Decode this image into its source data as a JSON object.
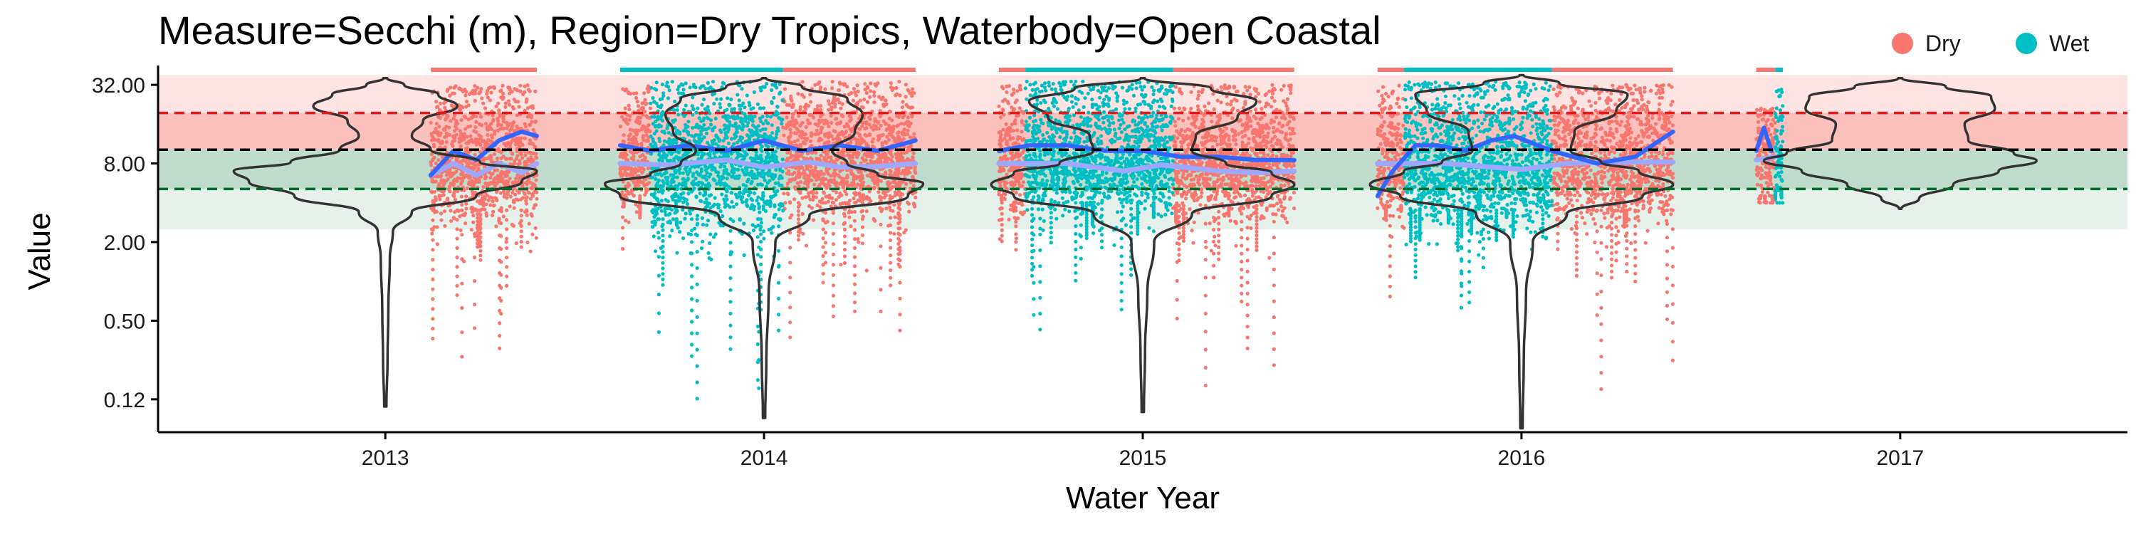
{
  "chart_data": {
    "type": "scatter",
    "title": "Measure=Secchi (m), Region=Dry Tropics, Waterbody=Open Coastal",
    "xlabel": "Water Year",
    "ylabel": "Value",
    "y_scale": "log2",
    "ylim": [
      0.07,
      45
    ],
    "xlim": [
      2012.4,
      2017.6
    ],
    "yticks": [
      {
        "value": 0.125,
        "label": "0.12"
      },
      {
        "value": 0.5,
        "label": "0.50"
      },
      {
        "value": 2,
        "label": "2.00"
      },
      {
        "value": 8,
        "label": "8.00"
      },
      {
        "value": 32,
        "label": "32.00"
      }
    ],
    "xticks": [
      {
        "value": 2013,
        "label": "2013"
      },
      {
        "value": 2014,
        "label": "2014"
      },
      {
        "value": 2015,
        "label": "2015"
      },
      {
        "value": 2016,
        "label": "2016"
      },
      {
        "value": 2017,
        "label": "2017"
      }
    ],
    "legend": {
      "position": "top-right",
      "items": [
        {
          "label": "Dry",
          "color": "#F8766D"
        },
        {
          "label": "Wet",
          "color": "#00BFC4"
        }
      ]
    },
    "guidelines": [
      {
        "value": 19.5,
        "color": "#e31a1c"
      },
      {
        "value": 10.2,
        "color": "#000000"
      },
      {
        "value": 5.1,
        "color": "#006d2c"
      }
    ],
    "bands": [
      {
        "from": 19.5,
        "to": 38,
        "color": "#F8766D",
        "opacity": 0.2
      },
      {
        "from": 10.2,
        "to": 19.5,
        "color": "#F8766D",
        "opacity": 0.45
      },
      {
        "from": 5.1,
        "to": 10.2,
        "color": "#2E8B57",
        "opacity": 0.3
      },
      {
        "from": 2.5,
        "to": 5.1,
        "color": "#2E8B57",
        "opacity": 0.12
      }
    ],
    "season_bars": [
      {
        "from": 2013.12,
        "to": 2013.4,
        "season": "Dry"
      },
      {
        "from": 2013.62,
        "to": 2014.05,
        "season": "Wet"
      },
      {
        "from": 2014.05,
        "to": 2014.4,
        "season": "Dry"
      },
      {
        "from": 2014.62,
        "to": 2014.69,
        "season": "Dry"
      },
      {
        "from": 2014.69,
        "to": 2015.08,
        "season": "Wet"
      },
      {
        "from": 2015.08,
        "to": 2015.4,
        "season": "Dry"
      },
      {
        "from": 2015.62,
        "to": 2015.69,
        "season": "Dry"
      },
      {
        "from": 2015.69,
        "to": 2016.08,
        "season": "Wet"
      },
      {
        "from": 2016.08,
        "to": 2016.4,
        "season": "Dry"
      },
      {
        "from": 2016.62,
        "to": 2016.67,
        "season": "Dry"
      },
      {
        "from": 2016.67,
        "to": 2016.69,
        "season": "Wet"
      }
    ],
    "series": [
      {
        "name": "Dry",
        "color": "#F8766D",
        "periods": [
          {
            "from": 2013.12,
            "to": 2013.4,
            "median": 8.5,
            "lo": 3.5,
            "hi": 26,
            "tail_lo": 0.12,
            "tail_hi": 32
          },
          {
            "from": 2013.62,
            "to": 2013.7,
            "median": 8.5,
            "lo": 4.5,
            "hi": 22,
            "tail_lo": 1.2,
            "tail_hi": 32
          },
          {
            "from": 2014.05,
            "to": 2014.4,
            "median": 8.5,
            "lo": 4.0,
            "hi": 24,
            "tail_lo": 0.25,
            "tail_hi": 34
          },
          {
            "from": 2014.62,
            "to": 2014.69,
            "median": 8.5,
            "lo": 4.0,
            "hi": 24,
            "tail_lo": 1.5,
            "tail_hi": 32
          },
          {
            "from": 2015.08,
            "to": 2015.4,
            "median": 8.0,
            "lo": 3.8,
            "hi": 24,
            "tail_lo": 0.1,
            "tail_hi": 32
          },
          {
            "from": 2015.62,
            "to": 2015.69,
            "median": 8.0,
            "lo": 3.8,
            "hi": 24,
            "tail_lo": 0.12,
            "tail_hi": 32
          },
          {
            "from": 2016.08,
            "to": 2016.4,
            "median": 8.0,
            "lo": 3.5,
            "hi": 26,
            "tail_lo": 0.08,
            "tail_hi": 32
          },
          {
            "from": 2016.62,
            "to": 2016.67,
            "median": 9.0,
            "lo": 4.5,
            "hi": 20,
            "tail_lo": 4.0,
            "tail_hi": 22
          }
        ]
      },
      {
        "name": "Wet",
        "color": "#00BFC4",
        "periods": [
          {
            "from": 2013.7,
            "to": 2014.05,
            "median": 8.5,
            "lo": 3.0,
            "hi": 26,
            "tail_lo": 0.09,
            "tail_hi": 34
          },
          {
            "from": 2014.69,
            "to": 2015.08,
            "median": 8.5,
            "lo": 4.0,
            "hi": 28,
            "tail_lo": 0.3,
            "tail_hi": 34
          },
          {
            "from": 2015.69,
            "to": 2016.08,
            "median": 8.0,
            "lo": 3.5,
            "hi": 28,
            "tail_lo": 0.5,
            "tail_hi": 34
          },
          {
            "from": 2016.67,
            "to": 2016.69,
            "median": 9.5,
            "lo": 5.0,
            "hi": 28,
            "tail_lo": 4.0,
            "tail_hi": 30
          }
        ]
      }
    ],
    "violins": [
      {
        "x": 2013,
        "color": "#333333",
        "profile": [
          [
            0.11,
            0.003
          ],
          [
            0.25,
            0.006
          ],
          [
            0.6,
            0.008
          ],
          [
            1.5,
            0.012
          ],
          [
            2.4,
            0.02
          ],
          [
            3.4,
            0.07
          ],
          [
            4.5,
            0.24
          ],
          [
            5.8,
            0.36
          ],
          [
            7.0,
            0.4
          ],
          [
            8.2,
            0.25
          ],
          [
            10.2,
            0.12
          ],
          [
            13,
            0.07
          ],
          [
            17,
            0.1
          ],
          [
            22,
            0.19
          ],
          [
            27,
            0.14
          ],
          [
            32,
            0.05
          ],
          [
            36,
            0.005
          ]
        ]
      },
      {
        "x": 2014,
        "color": "#333333",
        "profile": [
          [
            0.09,
            0.003
          ],
          [
            0.25,
            0.006
          ],
          [
            0.8,
            0.012
          ],
          [
            2.0,
            0.03
          ],
          [
            3.2,
            0.12
          ],
          [
            4.5,
            0.38
          ],
          [
            5.6,
            0.42
          ],
          [
            6.6,
            0.3
          ],
          [
            8.0,
            0.22
          ],
          [
            10,
            0.18
          ],
          [
            14,
            0.24
          ],
          [
            19,
            0.26
          ],
          [
            25,
            0.22
          ],
          [
            31,
            0.1
          ],
          [
            36,
            0.005
          ]
        ]
      },
      {
        "x": 2015,
        "color": "#333333",
        "profile": [
          [
            0.1,
            0.003
          ],
          [
            0.3,
            0.006
          ],
          [
            0.8,
            0.012
          ],
          [
            2.0,
            0.03
          ],
          [
            3.3,
            0.13
          ],
          [
            4.5,
            0.34
          ],
          [
            5.5,
            0.4
          ],
          [
            6.8,
            0.34
          ],
          [
            8.0,
            0.22
          ],
          [
            10,
            0.13
          ],
          [
            13,
            0.14
          ],
          [
            18,
            0.25
          ],
          [
            24,
            0.3
          ],
          [
            30,
            0.18
          ],
          [
            36,
            0.005
          ]
        ]
      },
      {
        "x": 2016,
        "color": "#333333",
        "profile": [
          [
            0.075,
            0.003
          ],
          [
            0.25,
            0.006
          ],
          [
            0.8,
            0.012
          ],
          [
            2.0,
            0.03
          ],
          [
            3.3,
            0.12
          ],
          [
            4.5,
            0.32
          ],
          [
            5.5,
            0.4
          ],
          [
            7.0,
            0.31
          ],
          [
            8.2,
            0.21
          ],
          [
            10,
            0.13
          ],
          [
            14,
            0.14
          ],
          [
            20,
            0.25
          ],
          [
            27,
            0.28
          ],
          [
            33,
            0.1
          ],
          [
            38,
            0.005
          ]
        ]
      },
      {
        "x": 2017,
        "color": "#333333",
        "profile": [
          [
            3.6,
            0.003
          ],
          [
            4.3,
            0.05
          ],
          [
            5.5,
            0.14
          ],
          [
            7.0,
            0.26
          ],
          [
            8.4,
            0.36
          ],
          [
            9.6,
            0.3
          ],
          [
            12,
            0.18
          ],
          [
            16,
            0.17
          ],
          [
            21,
            0.25
          ],
          [
            26,
            0.24
          ],
          [
            31,
            0.12
          ],
          [
            36,
            0.005
          ]
        ]
      }
    ],
    "trend_lines": [
      {
        "name": "loess",
        "color": "#3366FF",
        "width": 6,
        "points": [
          [
            2013.12,
            6.5
          ],
          [
            2013.18,
            10
          ],
          [
            2013.24,
            8.5
          ],
          [
            2013.3,
            12
          ],
          [
            2013.36,
            14
          ],
          [
            2013.4,
            13
          ],
          null,
          [
            2013.62,
            11
          ],
          [
            2013.7,
            10
          ],
          [
            2013.8,
            11
          ],
          [
            2013.9,
            10
          ],
          [
            2014.0,
            12
          ],
          [
            2014.1,
            10
          ],
          [
            2014.2,
            11
          ],
          [
            2014.3,
            10
          ],
          [
            2014.4,
            12
          ],
          null,
          [
            2014.62,
            10
          ],
          [
            2014.7,
            11
          ],
          [
            2014.8,
            11
          ],
          [
            2014.9,
            10
          ],
          [
            2015.0,
            10
          ],
          [
            2015.1,
            9
          ],
          [
            2015.2,
            9
          ],
          [
            2015.3,
            8.5
          ],
          [
            2015.4,
            8.5
          ],
          null,
          [
            2015.62,
            4.5
          ],
          [
            2015.66,
            7
          ],
          [
            2015.72,
            11
          ],
          [
            2015.78,
            11
          ],
          [
            2015.85,
            10
          ],
          [
            2015.92,
            12
          ],
          [
            2015.98,
            13
          ],
          [
            2016.08,
            10
          ],
          [
            2016.2,
            8
          ],
          [
            2016.3,
            9
          ],
          [
            2016.4,
            14
          ],
          null,
          [
            2016.62,
            10
          ],
          [
            2016.64,
            15
          ],
          [
            2016.66,
            10
          ]
        ]
      },
      {
        "name": "smooth",
        "color": "#9EA8FF",
        "width": 7,
        "points": [
          [
            2013.12,
            6.5
          ],
          [
            2013.18,
            8
          ],
          [
            2013.24,
            6.5
          ],
          [
            2013.3,
            8
          ],
          [
            2013.36,
            6.8
          ],
          [
            2013.4,
            8
          ],
          null,
          [
            2013.62,
            8
          ],
          [
            2013.75,
            7.8
          ],
          [
            2013.9,
            8.5
          ],
          [
            2014.0,
            7.5
          ],
          [
            2014.12,
            8.2
          ],
          [
            2014.2,
            7.5
          ],
          [
            2014.3,
            7.6
          ],
          [
            2014.4,
            8
          ],
          null,
          [
            2014.62,
            8
          ],
          [
            2014.8,
            8
          ],
          [
            2014.95,
            7
          ],
          [
            2015.05,
            7.8
          ],
          [
            2015.2,
            7
          ],
          [
            2015.3,
            6.8
          ],
          [
            2015.4,
            7
          ],
          null,
          [
            2015.62,
            8
          ],
          [
            2015.8,
            8
          ],
          [
            2016.0,
            7.2
          ],
          [
            2016.12,
            8
          ],
          [
            2016.25,
            8.2
          ],
          [
            2016.4,
            8.2
          ],
          null,
          [
            2016.62,
            8.5
          ],
          [
            2016.67,
            9
          ]
        ]
      }
    ]
  }
}
